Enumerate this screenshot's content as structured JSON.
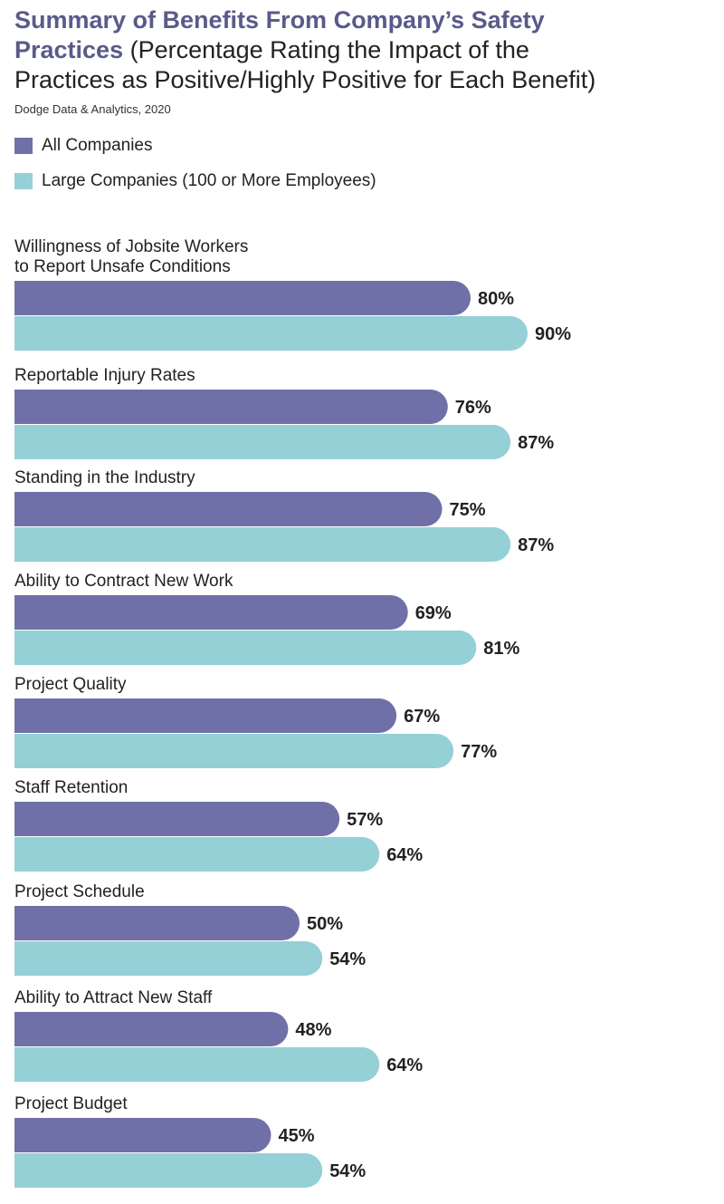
{
  "title": {
    "line1": "Summary of Benefits From Company’s Safety",
    "line2_bold": "Practices",
    "line2_rest": " (Percentage Rating the Impact of the",
    "line3": "Practices as Positive/Highly Positive for Each Benefit)"
  },
  "source": "Dodge Data & Analytics, 2020",
  "colors": {
    "all": "#7070a8",
    "large": "#94d0d6"
  },
  "chart_data": {
    "type": "bar",
    "orientation": "horizontal",
    "categories": [
      [
        "Willingness of Jobsite Workers",
        "to Report Unsafe Conditions"
      ],
      [
        "Reportable Injury Rates"
      ],
      [
        "Standing in the Industry"
      ],
      [
        "Ability to Contract New Work"
      ],
      [
        "Project Quality"
      ],
      [
        "Staff Retention"
      ],
      [
        "Project Schedule"
      ],
      [
        "Ability to Attract New Staff"
      ],
      [
        "Project Budget"
      ]
    ],
    "series": [
      {
        "name": "All Companies",
        "values": [
          80,
          76,
          75,
          69,
          67,
          57,
          50,
          48,
          45
        ]
      },
      {
        "name": "Large Companies (100 or More Employees)",
        "values": [
          90,
          87,
          87,
          81,
          77,
          64,
          54,
          64,
          54
        ]
      }
    ],
    "value_suffix": "%",
    "legend_position": "top-left"
  }
}
